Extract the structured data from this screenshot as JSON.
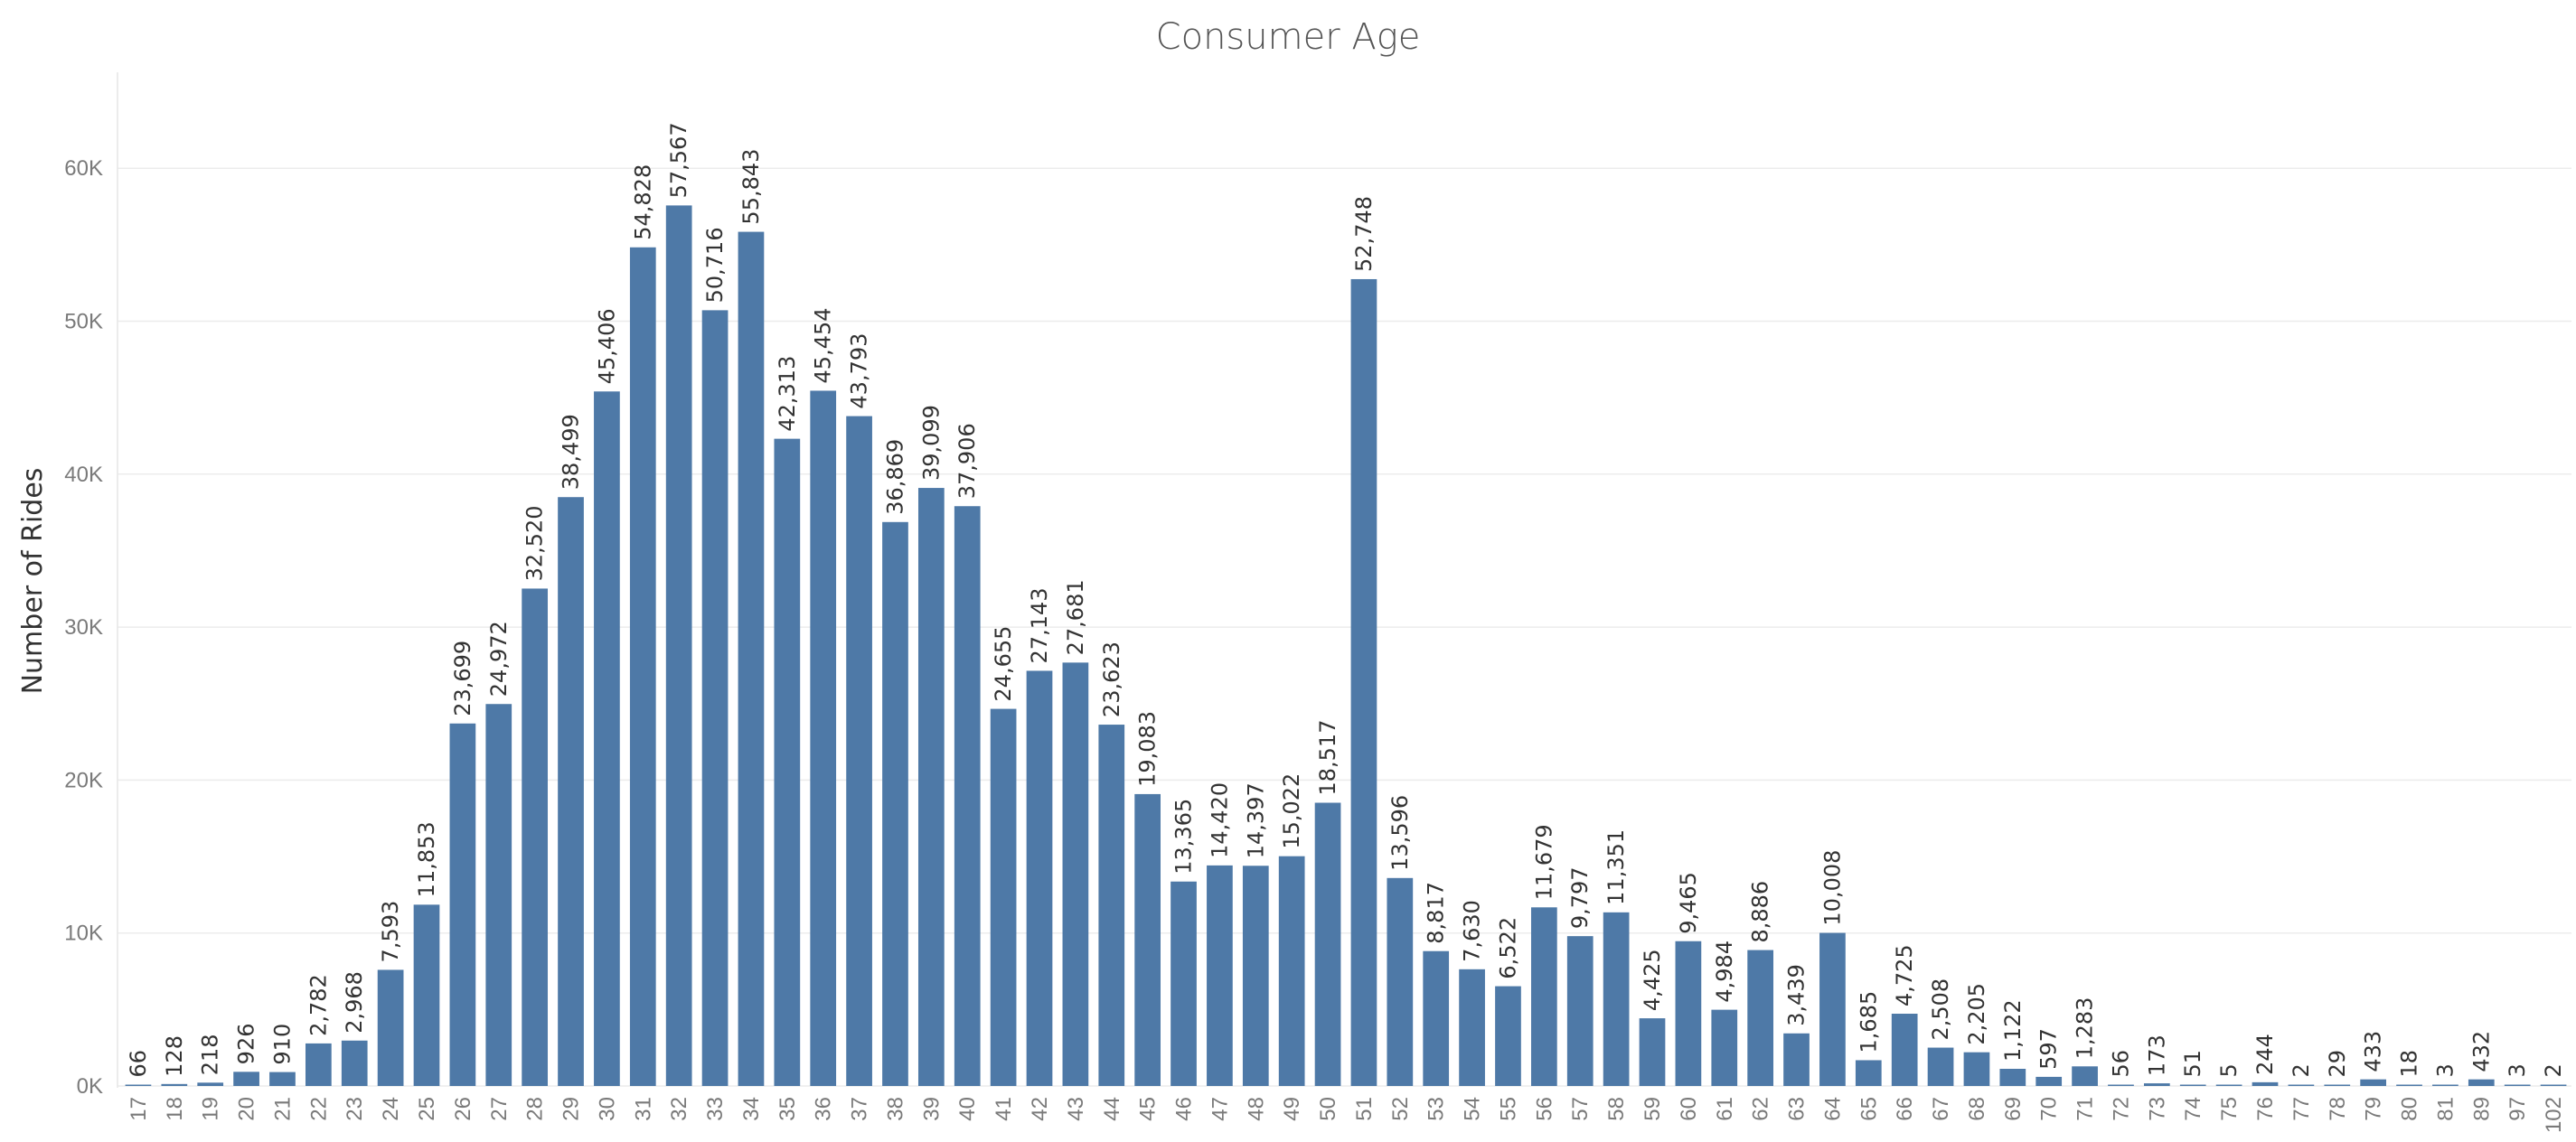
{
  "chart_data": {
    "type": "bar",
    "title": "Consumer Age",
    "xlabel": "",
    "ylabel": "Number of Rides",
    "ylim": [
      0,
      65000
    ],
    "yticks": [
      0,
      10000,
      20000,
      30000,
      40000,
      50000,
      60000
    ],
    "ytick_labels": [
      "0K",
      "10K",
      "20K",
      "30K",
      "40K",
      "50K",
      "60K"
    ],
    "grid": true,
    "bar_color": "#4e79a7",
    "categories": [
      "17",
      "18",
      "19",
      "20",
      "21",
      "22",
      "23",
      "24",
      "25",
      "26",
      "27",
      "28",
      "29",
      "30",
      "31",
      "32",
      "33",
      "34",
      "35",
      "36",
      "37",
      "38",
      "39",
      "40",
      "41",
      "42",
      "43",
      "44",
      "45",
      "46",
      "47",
      "48",
      "49",
      "50",
      "51",
      "52",
      "53",
      "54",
      "55",
      "56",
      "57",
      "58",
      "59",
      "60",
      "61",
      "62",
      "63",
      "64",
      "65",
      "66",
      "67",
      "68",
      "69",
      "70",
      "71",
      "72",
      "73",
      "74",
      "75",
      "76",
      "77",
      "78",
      "79",
      "80",
      "81",
      "89",
      "97",
      "102"
    ],
    "values": [
      66,
      128,
      218,
      926,
      910,
      2782,
      2968,
      7593,
      11853,
      23699,
      24972,
      32520,
      38499,
      45406,
      54828,
      57567,
      50716,
      55843,
      42313,
      45454,
      43793,
      36869,
      39099,
      37906,
      24655,
      27143,
      27681,
      23623,
      19083,
      13365,
      14420,
      14397,
      15022,
      18517,
      52748,
      13596,
      8817,
      7630,
      6522,
      11679,
      9797,
      11351,
      4425,
      9465,
      4984,
      8886,
      3439,
      10008,
      1685,
      4725,
      2508,
      2205,
      1122,
      597,
      1283,
      56,
      173,
      51,
      5,
      244,
      2,
      29,
      433,
      18,
      3,
      432,
      3,
      2
    ],
    "value_labels": [
      "66",
      "128",
      "218",
      "926",
      "910",
      "2,782",
      "2,968",
      "7,593",
      "11,853",
      "23,699",
      "24,972",
      "32,520",
      "38,499",
      "45,406",
      "54,828",
      "57,567",
      "50,716",
      "55,843",
      "42,313",
      "45,454",
      "43,793",
      "36,869",
      "39,099",
      "37,906",
      "24,655",
      "27,143",
      "27,681",
      "23,623",
      "19,083",
      "13,365",
      "14,420",
      "14,397",
      "15,022",
      "18,517",
      "52,748",
      "13,596",
      "8,817",
      "7,630",
      "6,522",
      "11,679",
      "9,797",
      "11,351",
      "4,425",
      "9,465",
      "4,984",
      "8,886",
      "3,439",
      "10,008",
      "1,685",
      "4,725",
      "2,508",
      "2,205",
      "1,122",
      "597",
      "1,283",
      "56",
      "173",
      "51",
      "5",
      "244",
      "2",
      "29",
      "433",
      "18",
      "3",
      "432",
      "3",
      "2"
    ]
  }
}
